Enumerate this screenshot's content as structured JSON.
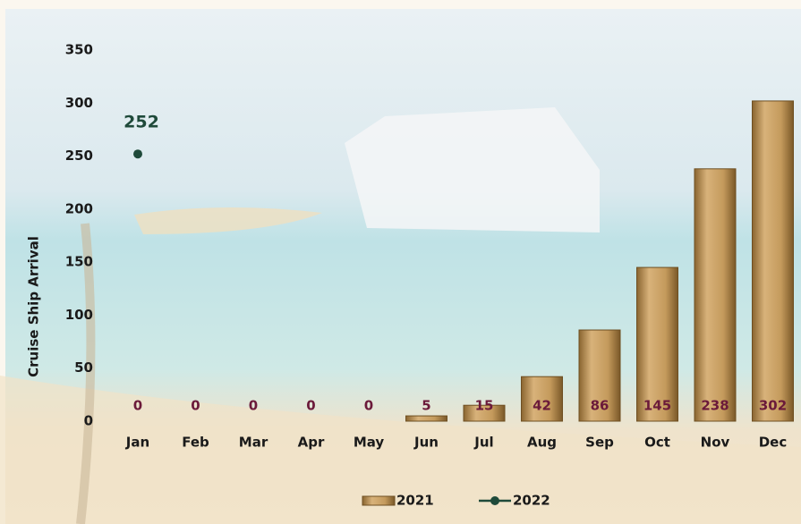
{
  "chart_data": {
    "type": "bar",
    "y_label": "Cruise Ship Arrival",
    "categories": [
      "Jan",
      "Feb",
      "Mar",
      "Apr",
      "May",
      "Jun",
      "Jul",
      "Aug",
      "Sep",
      "Oct",
      "Nov",
      "Dec"
    ],
    "series": [
      {
        "name": "2021",
        "type": "bar",
        "color": "#c49a5c",
        "label_color": "#6b1a3a",
        "values": [
          0,
          0,
          0,
          0,
          0,
          5,
          15,
          42,
          86,
          145,
          238,
          302
        ]
      },
      {
        "name": "2022",
        "type": "line",
        "color": "#1f4a3a",
        "label_color": "#1f4a3a",
        "values": [
          252,
          null,
          null,
          null,
          null,
          null,
          null,
          null,
          null,
          null,
          null,
          null
        ]
      }
    ],
    "ylim": [
      0,
      350
    ],
    "yticks": [
      0,
      50,
      100,
      150,
      200,
      250,
      300,
      350
    ],
    "grid": false,
    "legend": "bottom"
  }
}
